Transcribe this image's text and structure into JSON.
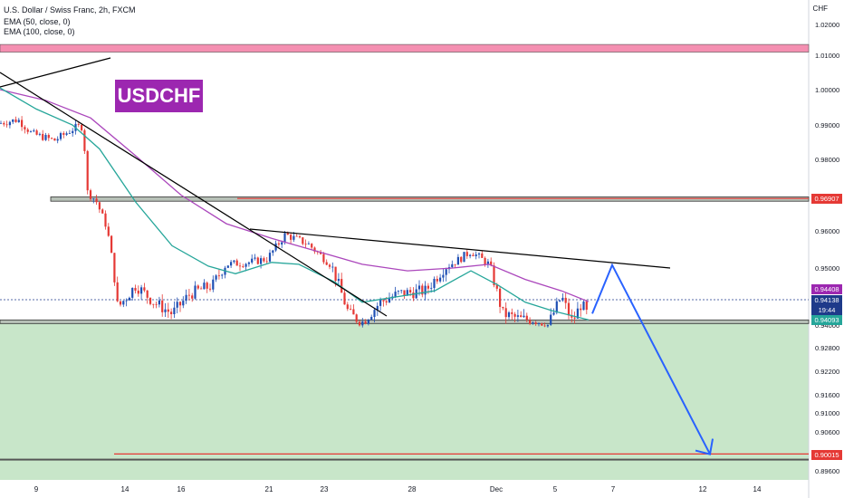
{
  "header": {
    "symbol_line": "U.S. Dollar / Swiss Franc, 2h, FXCM",
    "ema50_line": "EMA (50, close, 0)",
    "ema100_line": "EMA (100, close, 0)"
  },
  "badge": "USDCHF",
  "currency": "CHF",
  "colors": {
    "green_zone": "#c8e6c9",
    "red_zone": "#f48fb1",
    "ema50": "#26a69a",
    "ema100": "#ab47bc",
    "candle_up": "#1e4fb4",
    "candle_down": "#e53935",
    "arrow": "#2962ff"
  },
  "tags": {
    "res": "0.96907",
    "ema100": "0.94408",
    "price": "0.94138",
    "countdown": "19:44",
    "ema50": "0.94093",
    "sup": "0.90015"
  },
  "chart_data": {
    "type": "candlestick",
    "y_ticks": [
      1.02,
      1.01,
      1.0,
      0.99,
      0.98,
      0.96,
      0.95,
      0.94,
      0.928,
      0.922,
      0.916,
      0.91,
      0.906,
      0.9,
      0.896
    ],
    "y_tick_labels": [
      "1.02000",
      "1.01000",
      "1.00000",
      "0.99000",
      "0.98000",
      "0.96000",
      "0.95000",
      "0.94000",
      "0.92800",
      "0.92200",
      "0.91600",
      "0.91000",
      "0.90600",
      "0.90000",
      "0.89600"
    ],
    "x_labels": [
      "9",
      "14",
      "16",
      "21",
      "23",
      "28",
      "Dec",
      "5",
      "7",
      "12",
      "14"
    ],
    "zones": [
      {
        "name": "supply",
        "from": 1.011,
        "to": 1.0135
      },
      {
        "name": "resistance-box",
        "from": 0.9683,
        "to": 0.9695
      },
      {
        "name": "support-box",
        "from": 0.9403,
        "to": 0.9409
      }
    ],
    "levels": [
      {
        "name": "resistance",
        "value": 0.96907
      },
      {
        "name": "target",
        "value": 0.90015
      }
    ],
    "last_price": 0.94138,
    "ema50_last": 0.94093,
    "ema100_last": 0.94408,
    "projection": [
      [
        0.942,
        0.9508
      ],
      [
        0.9508,
        0.9001
      ]
    ]
  }
}
